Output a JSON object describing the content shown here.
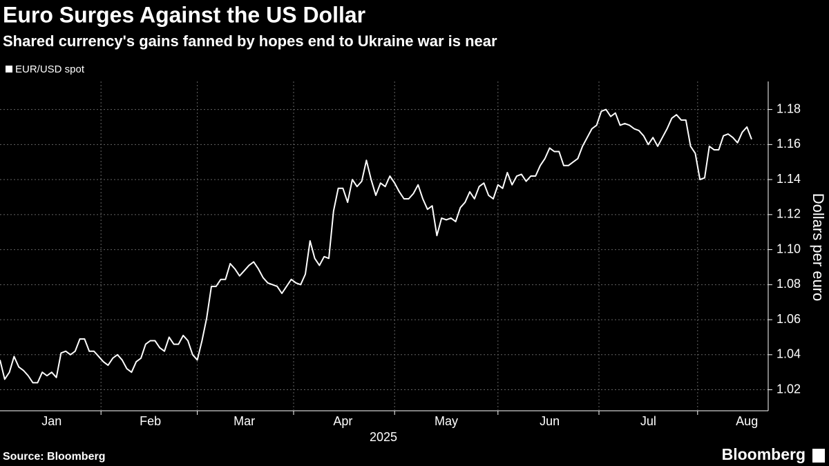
{
  "chart_data": {
    "type": "line",
    "title": "Euro Surges Against the US Dollar",
    "subtitle": "Shared currency's gains fanned by hopes end to Ukraine war is near",
    "y_label": "Dollars per euro",
    "x_label": "2025",
    "source": "Source: Bloomberg",
    "brand": "Bloomberg",
    "categories": [
      null,
      null,
      null,
      null,
      null,
      null,
      null,
      null,
      null,
      null,
      null,
      "Jan",
      null,
      null,
      null,
      null,
      null,
      null,
      null,
      null,
      null,
      null,
      null,
      null,
      null,
      null,
      null,
      null,
      null,
      null,
      null,
      null,
      "Feb",
      null,
      null,
      null,
      null,
      null,
      null,
      null,
      null,
      null,
      null,
      null,
      null,
      null,
      null,
      null,
      null,
      null,
      null,
      null,
      "Mar",
      null,
      null,
      null,
      null,
      null,
      null,
      null,
      null,
      null,
      null,
      null,
      null,
      null,
      null,
      null,
      null,
      null,
      null,
      null,
      null,
      "Apr",
      null,
      null,
      null,
      null,
      null,
      null,
      null,
      null,
      null,
      null,
      null,
      null,
      null,
      null,
      null,
      null,
      null,
      null,
      null,
      null,
      null,
      "May",
      null,
      null,
      null,
      null,
      null,
      null,
      null,
      null,
      null,
      null,
      null,
      null,
      null,
      null,
      null,
      null,
      null,
      null,
      null,
      null,
      null,
      "Jun",
      null,
      null,
      null,
      null,
      null,
      null,
      null,
      null,
      null,
      null,
      null,
      null,
      null,
      null,
      null,
      null,
      null,
      null,
      null,
      null,
      "Jul",
      null,
      null,
      null,
      null,
      null,
      null,
      null,
      null,
      null,
      null,
      null,
      null,
      null,
      null,
      null,
      null,
      null,
      null,
      null,
      null,
      "Aug",
      null
    ],
    "series": [
      {
        "name": "EUR/USD spot",
        "color": "#ffffff",
        "values": [
          1.037,
          1.026,
          1.03,
          1.039,
          1.033,
          1.031,
          1.028,
          1.024,
          1.024,
          1.03,
          1.028,
          1.03,
          1.027,
          1.041,
          1.042,
          1.04,
          1.042,
          1.049,
          1.049,
          1.042,
          1.042,
          1.039,
          1.036,
          1.034,
          1.038,
          1.04,
          1.037,
          1.032,
          1.03,
          1.036,
          1.038,
          1.046,
          1.048,
          1.048,
          1.044,
          1.042,
          1.05,
          1.046,
          1.046,
          1.051,
          1.048,
          1.04,
          1.037,
          1.048,
          1.061,
          1.079,
          1.079,
          1.083,
          1.083,
          1.092,
          1.089,
          1.085,
          1.088,
          1.091,
          1.093,
          1.089,
          1.084,
          1.081,
          1.08,
          1.079,
          1.075,
          1.079,
          1.083,
          1.081,
          1.08,
          1.086,
          1.105,
          1.095,
          1.091,
          1.096,
          1.095,
          1.122,
          1.135,
          1.135,
          1.127,
          1.14,
          1.136,
          1.139,
          1.151,
          1.14,
          1.131,
          1.138,
          1.136,
          1.142,
          1.138,
          1.133,
          1.129,
          1.129,
          1.132,
          1.137,
          1.129,
          1.123,
          1.125,
          1.108,
          1.118,
          1.117,
          1.118,
          1.116,
          1.124,
          1.127,
          1.133,
          1.129,
          1.136,
          1.138,
          1.131,
          1.129,
          1.137,
          1.135,
          1.144,
          1.137,
          1.142,
          1.143,
          1.139,
          1.142,
          1.142,
          1.148,
          1.152,
          1.158,
          1.156,
          1.156,
          1.148,
          1.148,
          1.15,
          1.152,
          1.159,
          1.164,
          1.169,
          1.171,
          1.179,
          1.18,
          1.176,
          1.178,
          1.171,
          1.172,
          1.171,
          1.169,
          1.168,
          1.165,
          1.16,
          1.164,
          1.159,
          1.164,
          1.169,
          1.175,
          1.177,
          1.174,
          1.174,
          1.159,
          1.155,
          1.14,
          1.141,
          1.159,
          1.157,
          1.157,
          1.165,
          1.166,
          1.164,
          1.161,
          1.167,
          1.17,
          1.163
        ]
      }
    ],
    "ylim": [
      1.008,
      1.196
    ],
    "yticks": [
      1.02,
      1.04,
      1.06,
      1.08,
      {
        "value": 1.1,
        "label": "1.10"
      },
      1.12,
      1.14,
      1.16,
      1.18
    ],
    "grid": true
  }
}
